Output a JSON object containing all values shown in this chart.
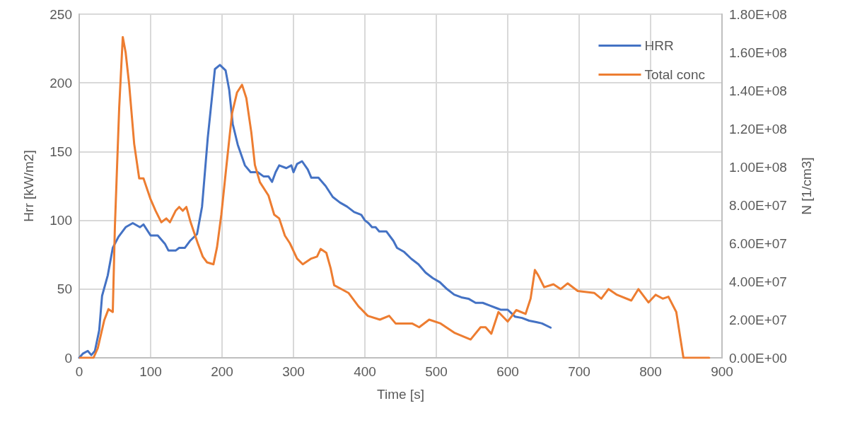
{
  "chart_data": {
    "type": "line",
    "xlabel": "Time [s]",
    "ylabel": "Hrr [kW/m2]",
    "y2label": "N [1/cm3]",
    "xlim": [
      0,
      900
    ],
    "xticks": [
      0,
      100,
      200,
      300,
      400,
      500,
      600,
      700,
      800,
      900
    ],
    "ylim": [
      0,
      250
    ],
    "yticks": [
      0,
      50,
      100,
      150,
      200,
      250
    ],
    "y2lim": [
      0,
      180000000.0
    ],
    "y2ticks": [
      {
        "value": 0,
        "label": "0.00E+00"
      },
      {
        "value": 20000000.0,
        "label": "2.00E+07"
      },
      {
        "value": 40000000.0,
        "label": "4.00E+07"
      },
      {
        "value": 60000000.0,
        "label": "6.00E+07"
      },
      {
        "value": 80000000.0,
        "label": "8.00E+07"
      },
      {
        "value": 100000000.0,
        "label": "1.00E+08"
      },
      {
        "value": 120000000.0,
        "label": "1.20E+08"
      },
      {
        "value": 140000000.0,
        "label": "1.40E+08"
      },
      {
        "value": 160000000.0,
        "label": "1.60E+08"
      },
      {
        "value": 180000000.0,
        "label": "1.80E+08"
      }
    ],
    "grid": true,
    "legend": "top right",
    "marker": "none",
    "line_style": "solid",
    "series": [
      {
        "name": "HRR",
        "color": "#4472c4",
        "x": [
          0,
          5,
          12,
          17,
          22,
          28,
          32,
          40,
          47,
          55,
          65,
          75,
          85,
          90,
          100,
          110,
          120,
          125,
          135,
          140,
          148,
          155,
          165,
          172,
          180,
          190,
          197,
          205,
          210,
          215,
          222,
          232,
          240,
          250,
          258,
          265,
          270,
          275,
          280,
          290,
          297,
          300,
          305,
          312,
          320,
          325,
          335,
          345,
          355,
          365,
          375,
          385,
          395,
          400,
          405,
          410,
          415,
          420,
          430,
          440,
          445,
          455,
          465,
          475,
          485,
          495,
          505,
          515,
          525,
          535,
          545,
          555,
          565,
          575,
          585,
          590,
          600,
          610,
          620,
          630,
          640,
          648,
          660
        ],
        "values": [
          0,
          3,
          5,
          2,
          5,
          20,
          45,
          60,
          80,
          88,
          95,
          98,
          95,
          97,
          89,
          89,
          83,
          78,
          78,
          80,
          80,
          85,
          90,
          110,
          160,
          210,
          213,
          209,
          195,
          170,
          155,
          140,
          135,
          135,
          132,
          132,
          128,
          135,
          140,
          138,
          140,
          135,
          141,
          143,
          137,
          131,
          131,
          125,
          117,
          113,
          110,
          106,
          104,
          100,
          98,
          95,
          95,
          92,
          92,
          85,
          80,
          77,
          72,
          68,
          62,
          58,
          55,
          50,
          46,
          44,
          43,
          40,
          40,
          38,
          36,
          35,
          35,
          30,
          29,
          27,
          26,
          25,
          22
        ]
      },
      {
        "name": "Total conc",
        "color": "#ed7d31",
        "axis": "y2",
        "x": [
          1,
          20,
          26,
          35,
          41,
          47,
          50,
          56,
          61,
          65,
          70,
          77,
          84,
          90,
          100,
          107,
          115,
          122,
          127,
          135,
          140,
          145,
          150,
          156,
          166,
          173,
          179,
          188,
          193,
          199,
          206,
          214,
          221,
          228,
          234,
          241,
          246,
          253,
          265,
          273,
          280,
          288,
          295,
          305,
          313,
          325,
          333,
          338,
          346,
          352,
          357,
          367,
          377,
          391,
          404,
          421,
          434,
          443,
          466,
          476,
          490,
          506,
          526,
          548,
          562,
          569,
          577,
          587,
          600,
          612,
          625,
          632,
          638,
          643,
          651,
          664,
          674,
          684,
          698,
          721,
          731,
          741,
          753,
          773,
          783,
          797,
          807,
          817,
          825,
          836,
          846,
          882
        ],
        "values": [
          0,
          0,
          5000000.0,
          19600000.0,
          25500000.0,
          24000000.0,
          69000000.0,
          131000000.0,
          168000000.0,
          160000000.0,
          143000000.0,
          112000000.0,
          94000000.0,
          94000000.0,
          83000000.0,
          77000000.0,
          71000000.0,
          73000000.0,
          71000000.0,
          77000000.0,
          79000000.0,
          77000000.0,
          79000000.0,
          71000000.0,
          60000000.0,
          53000000.0,
          50000000.0,
          49000000.0,
          58000000.0,
          75000000.0,
          100000000.0,
          128000000.0,
          139000000.0,
          143000000.0,
          136000000.0,
          118000000.0,
          101000000.0,
          92000000.0,
          85000000.0,
          75000000.0,
          73000000.0,
          64000000.0,
          60000000.0,
          52000000.0,
          49000000.0,
          52000000.0,
          53000000.0,
          57000000.0,
          55000000.0,
          47000000.0,
          38000000.0,
          36000000.0,
          34000000.0,
          27000000.0,
          22000000.0,
          20000000.0,
          22000000.0,
          18000000.0,
          18000000.0,
          16000000.0,
          20000000.0,
          18000000.0,
          13000000.0,
          9600000.0,
          16000000.0,
          16000000.0,
          12600000.0,
          24000000.0,
          19000000.0,
          25000000.0,
          23000000.0,
          31000000.0,
          46000000.0,
          43000000.0,
          37000000.0,
          38500000.0,
          36000000.0,
          39000000.0,
          35000000.0,
          34000000.0,
          31000000.0,
          36000000.0,
          33000000.0,
          30000000.0,
          36000000.0,
          29000000.0,
          33000000.0,
          31000000.0,
          32000000.0,
          24000000.0,
          0,
          0
        ]
      }
    ]
  }
}
